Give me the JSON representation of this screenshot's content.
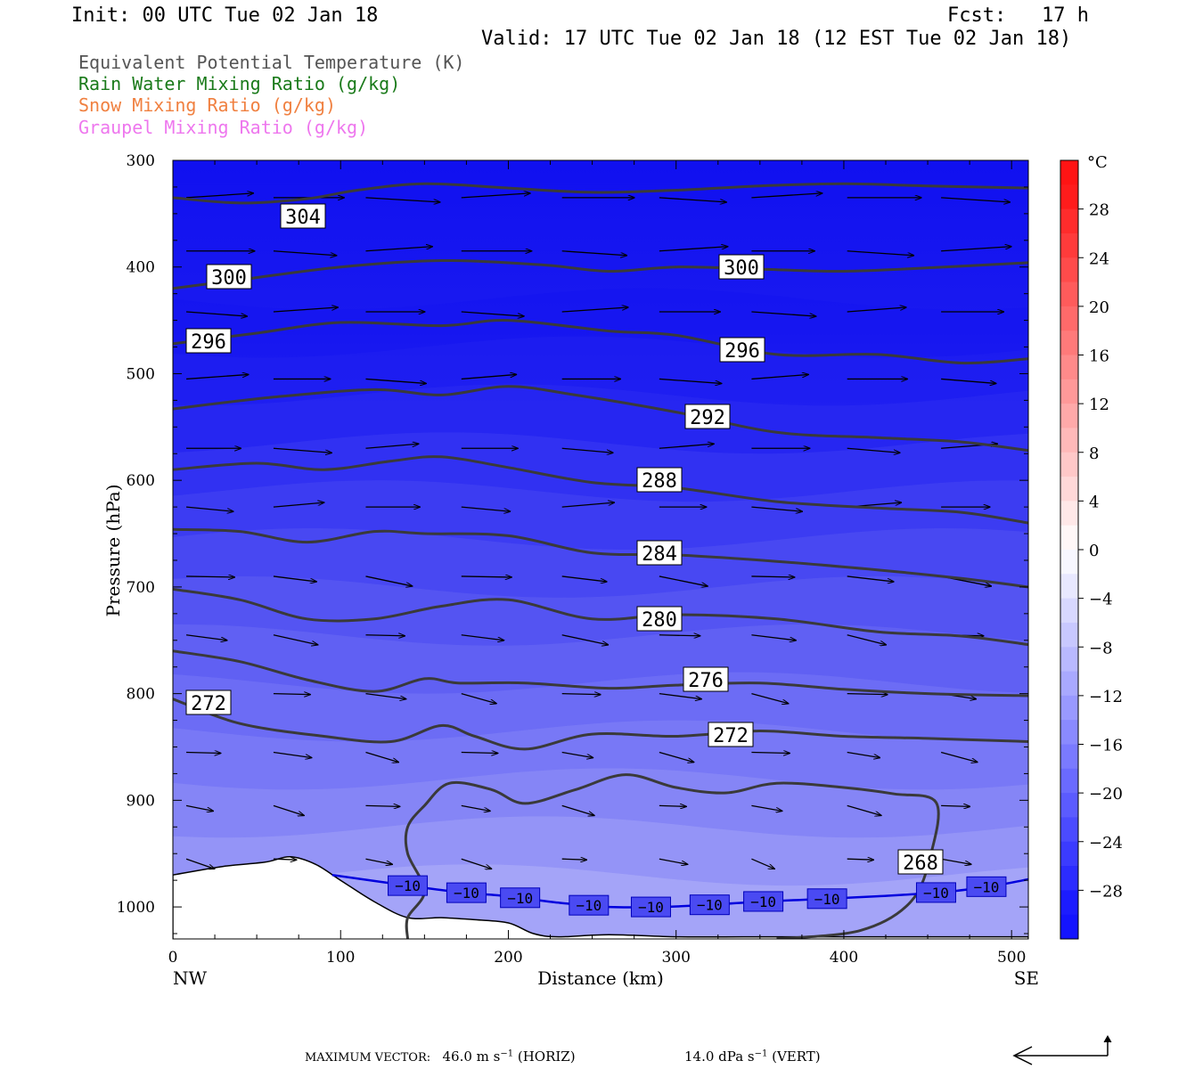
{
  "header": {
    "init": "Init: 00 UTC Tue 02 Jan 18",
    "fcst": "Fcst:   17 h",
    "valid": "Valid: 17 UTC Tue 02 Jan 18 (12 EST Tue 02 Jan 18)"
  },
  "legend": [
    {
      "label": "Equivalent Potential Temperature (K)",
      "color": "#555555"
    },
    {
      "label": "Rain Water Mixing Ratio (g/kg)",
      "color": "#1a7a1a"
    },
    {
      "label": "Snow Mixing Ratio (g/kg)",
      "color": "#f08040"
    },
    {
      "label": "Graupel Mixing Ratio (g/kg)",
      "color": "#ee77ee"
    }
  ],
  "chart_data": {
    "type": "cross-section",
    "xlabel": "Distance (km)",
    "ylabel": "Pressure (hPa)",
    "xlim": [
      0,
      510
    ],
    "ylim": [
      1030,
      300
    ],
    "x_ticks": [
      0,
      100,
      200,
      300,
      400,
      500
    ],
    "y_ticks": [
      300,
      400,
      500,
      600,
      700,
      800,
      900,
      1000
    ],
    "x_end_labels": {
      "left": "NW",
      "right": "SE"
    },
    "colorbar": {
      "unit": "°C",
      "tick_labels": [
        "28",
        "24",
        "20",
        "16",
        "12",
        "8",
        "4",
        "0",
        "−4",
        "−8",
        "−12",
        "−16",
        "−20",
        "−24",
        "−28"
      ],
      "tick_values": [
        28,
        24,
        20,
        16,
        12,
        8,
        4,
        0,
        -4,
        -8,
        -12,
        -16,
        -20,
        -24,
        -28
      ],
      "range": [
        -32,
        32
      ]
    },
    "theta_e_contours": [
      {
        "label": "304",
        "points": [
          [
            0,
            335
          ],
          [
            40,
            340
          ],
          [
            80,
            336
          ],
          [
            110,
            328
          ],
          [
            150,
            322
          ],
          [
            200,
            326
          ],
          [
            250,
            330
          ],
          [
            300,
            328
          ],
          [
            350,
            324
          ],
          [
            400,
            322
          ],
          [
            450,
            324
          ],
          [
            510,
            326
          ]
        ]
      },
      {
        "label": "300",
        "points": [
          [
            0,
            420
          ],
          [
            40,
            412
          ],
          [
            100,
            400
          ],
          [
            160,
            394
          ],
          [
            220,
            398
          ],
          [
            260,
            404
          ],
          [
            300,
            400
          ],
          [
            350,
            402
          ],
          [
            400,
            404
          ],
          [
            460,
            400
          ],
          [
            510,
            396
          ]
        ]
      },
      {
        "label": "296",
        "points": [
          [
            0,
            472
          ],
          [
            50,
            462
          ],
          [
            100,
            452
          ],
          [
            160,
            455
          ],
          [
            200,
            450
          ],
          [
            260,
            460
          ],
          [
            300,
            464
          ],
          [
            360,
            482
          ],
          [
            420,
            482
          ],
          [
            470,
            490
          ],
          [
            510,
            486
          ]
        ]
      },
      {
        "label": "292",
        "points": [
          [
            0,
            533
          ],
          [
            60,
            522
          ],
          [
            120,
            515
          ],
          [
            160,
            520
          ],
          [
            200,
            512
          ],
          [
            240,
            520
          ],
          [
            300,
            536
          ],
          [
            360,
            555
          ],
          [
            420,
            560
          ],
          [
            470,
            564
          ],
          [
            510,
            572
          ]
        ]
      },
      {
        "label": "288",
        "points": [
          [
            0,
            590
          ],
          [
            50,
            584
          ],
          [
            90,
            590
          ],
          [
            130,
            582
          ],
          [
            160,
            578
          ],
          [
            200,
            588
          ],
          [
            250,
            602
          ],
          [
            300,
            607
          ],
          [
            360,
            620
          ],
          [
            420,
            626
          ],
          [
            470,
            630
          ],
          [
            510,
            640
          ]
        ]
      },
      {
        "label": "284",
        "points": [
          [
            0,
            646
          ],
          [
            40,
            648
          ],
          [
            80,
            658
          ],
          [
            120,
            648
          ],
          [
            150,
            650
          ],
          [
            200,
            652
          ],
          [
            250,
            668
          ],
          [
            300,
            670
          ],
          [
            360,
            676
          ],
          [
            420,
            684
          ],
          [
            470,
            692
          ],
          [
            510,
            700
          ]
        ]
      },
      {
        "label": "280",
        "points": [
          [
            0,
            702
          ],
          [
            40,
            712
          ],
          [
            80,
            730
          ],
          [
            120,
            730
          ],
          [
            160,
            718
          ],
          [
            200,
            712
          ],
          [
            250,
            730
          ],
          [
            300,
            726
          ],
          [
            360,
            730
          ],
          [
            420,
            742
          ],
          [
            470,
            746
          ],
          [
            510,
            754
          ]
        ]
      },
      {
        "label": "276",
        "points": [
          [
            0,
            760
          ],
          [
            40,
            770
          ],
          [
            80,
            787
          ],
          [
            120,
            798
          ],
          [
            150,
            786
          ],
          [
            170,
            790
          ],
          [
            210,
            790
          ],
          [
            260,
            795
          ],
          [
            300,
            792
          ],
          [
            350,
            790
          ],
          [
            400,
            796
          ],
          [
            450,
            800
          ],
          [
            510,
            802
          ]
        ]
      },
      {
        "label": "272",
        "points": [
          [
            0,
            805
          ],
          [
            40,
            828
          ],
          [
            90,
            840
          ],
          [
            130,
            845
          ],
          [
            160,
            830
          ],
          [
            180,
            840
          ],
          [
            210,
            852
          ],
          [
            250,
            838
          ],
          [
            300,
            840
          ],
          [
            350,
            835
          ],
          [
            400,
            840
          ],
          [
            450,
            842
          ],
          [
            510,
            845
          ]
        ]
      },
      {
        "label": "268",
        "points": [
          [
            140,
            1030
          ],
          [
            140,
            1010
          ],
          [
            150,
            985
          ],
          [
            140,
            950
          ],
          [
            140,
            925
          ],
          [
            150,
            905
          ],
          [
            165,
            884
          ],
          [
            190,
            890
          ],
          [
            210,
            903
          ],
          [
            240,
            890
          ],
          [
            270,
            876
          ],
          [
            300,
            888
          ],
          [
            330,
            893
          ],
          [
            360,
            884
          ],
          [
            400,
            888
          ],
          [
            430,
            894
          ],
          [
            455,
            902
          ],
          [
            452,
            950
          ],
          [
            440,
            995
          ],
          [
            410,
            1022
          ],
          [
            360,
            1030
          ]
        ]
      }
    ],
    "temperature_minus10_contour": {
      "label": "−10",
      "points": [
        [
          95,
          970
        ],
        [
          140,
          980
        ],
        [
          170,
          986
        ],
        [
          200,
          990
        ],
        [
          230,
          996
        ],
        [
          260,
          1000
        ],
        [
          290,
          1000
        ],
        [
          320,
          998
        ],
        [
          350,
          995
        ],
        [
          380,
          993
        ],
        [
          420,
          990
        ],
        [
          460,
          986
        ],
        [
          490,
          980
        ],
        [
          510,
          974
        ]
      ]
    },
    "minus10_label_positions_km": [
      140,
      175,
      207,
      248,
      285,
      320,
      352,
      390,
      455,
      485
    ],
    "terrain": [
      [
        0,
        970
      ],
      [
        30,
        962
      ],
      [
        55,
        958
      ],
      [
        70,
        953
      ],
      [
        85,
        960
      ],
      [
        100,
        975
      ],
      [
        120,
        995
      ],
      [
        140,
        1010
      ],
      [
        160,
        1010
      ],
      [
        180,
        1012
      ],
      [
        200,
        1015
      ],
      [
        215,
        1025
      ],
      [
        230,
        1028
      ],
      [
        260,
        1026
      ],
      [
        300,
        1028
      ],
      [
        340,
        1028
      ],
      [
        380,
        1028
      ],
      [
        420,
        1028
      ],
      [
        460,
        1028
      ],
      [
        510,
        1028
      ]
    ],
    "wind_vector_grid_km": [
      8,
      60,
      115,
      172,
      232,
      290,
      345,
      402,
      458
    ],
    "wind_vector_grid_hpa": [
      335,
      385,
      442,
      505,
      570,
      625,
      690,
      745,
      800,
      855,
      905,
      955
    ],
    "footer": {
      "max_vector_label": "MAXIMUM VECTOR:",
      "horiz_value": "46.0 m s",
      "horiz_sup": "−1",
      "horiz_unit": " (HORIZ)",
      "vert_value": "14.0 dPa s",
      "vert_sup": "−1",
      "vert_unit": " (VERT)"
    }
  }
}
